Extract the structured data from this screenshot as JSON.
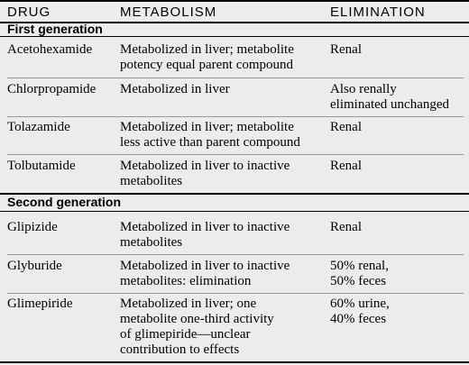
{
  "table": {
    "headers": [
      "DRUG",
      "METABOLISM",
      "ELIMINATION"
    ],
    "sections": [
      {
        "title": "First generation",
        "rows": [
          {
            "drug": "Acetohexamide",
            "metabolism": [
              "Metabolized in liver; metabolite",
              "potency equal parent compound"
            ],
            "elimination": [
              "Renal"
            ]
          },
          {
            "drug": "Chlorpropamide",
            "metabolism": [
              "Metabolized in liver"
            ],
            "elimination": [
              "Also renally",
              "eliminated unchanged"
            ]
          },
          {
            "drug": "Tolazamide",
            "metabolism": [
              "Metabolized in liver; metabolite",
              "less active than parent compound"
            ],
            "elimination": [
              "Renal"
            ]
          },
          {
            "drug": "Tolbutamide",
            "metabolism": [
              "Metabolized in liver to inactive",
              "metabolites"
            ],
            "elimination": [
              "Renal"
            ]
          }
        ]
      },
      {
        "title": "Second generation",
        "rows": [
          {
            "drug": "Glipizide",
            "metabolism": [
              "Metabolized in liver to inactive",
              "metabolites"
            ],
            "elimination": [
              "Renal"
            ]
          },
          {
            "drug": "Glyburide",
            "metabolism": [
              "Metabolized in liver to inactive",
              "metabolites: elimination"
            ],
            "elimination": [
              "50% renal,",
              "50% feces"
            ]
          },
          {
            "drug": "Glimepiride",
            "metabolism": [
              "Metabolized in liver; one",
              "metabolite one-third activity",
              "of glimepiride—unclear",
              "contribution to effects"
            ],
            "elimination": [
              "60% urine,",
              "40% feces"
            ]
          }
        ]
      }
    ]
  }
}
